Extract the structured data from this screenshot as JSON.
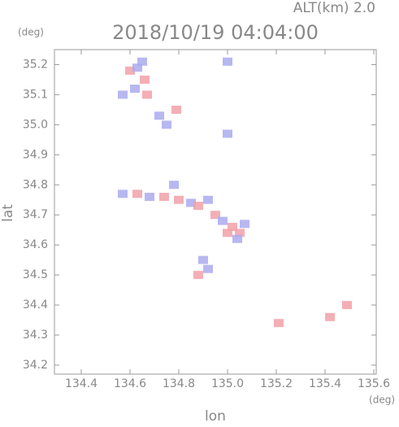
{
  "chart_data": {
    "type": "scatter",
    "header": "ALT(km) 2.0",
    "title": "2018/10/19 04:04:00",
    "y_unit": "(deg)",
    "x_unit": "(deg)",
    "ylabel": "lat",
    "xlabel": "lon",
    "xlim": [
      134.29,
      135.61
    ],
    "ylim": [
      34.17,
      35.25
    ],
    "xticks": [
      134.4,
      134.6,
      134.8,
      {
        "value": 135,
        "label": "135.0"
      },
      135.2,
      135.4,
      135.6
    ],
    "yticks": [
      34.2,
      34.3,
      34.4,
      34.5,
      34.6,
      34.7,
      34.8,
      34.9,
      {
        "value": 35,
        "label": "35.0"
      },
      35.1,
      35.2
    ],
    "x": [
      134.6,
      134.63,
      134.66,
      134.62,
      134.57,
      134.67,
      134.65,
      134.72,
      134.75,
      134.79,
      135.0,
      135.0,
      134.57,
      134.63,
      134.68,
      134.74,
      134.78,
      134.8,
      134.85,
      134.88,
      134.92,
      134.95,
      134.98,
      135.02,
      135.05,
      135.07,
      135.04,
      135.0,
      134.9,
      134.88,
      134.92,
      135.21,
      135.42,
      135.49
    ],
    "values": [
      35.18,
      35.19,
      35.15,
      35.12,
      35.1,
      35.1,
      35.21,
      35.03,
      35.0,
      35.05,
      34.97,
      35.21,
      34.77,
      34.77,
      34.76,
      34.76,
      34.8,
      34.75,
      34.74,
      34.73,
      34.75,
      34.7,
      34.68,
      34.66,
      34.64,
      34.67,
      34.62,
      34.64,
      34.55,
      34.5,
      34.52,
      34.34,
      34.36,
      34.4
    ],
    "colors": [
      "#f2a0a8",
      "#aaaaf0",
      "#f2a0a8",
      "#aaaaf0",
      "#aaaaf0",
      "#f2a0a8",
      "#aaaaf0",
      "#aaaaf0",
      "#aaaaf0",
      "#f2a0a8",
      "#aaaaf0",
      "#aaaaf0",
      "#aaaaf0",
      "#f2a0a8",
      "#aaaaf0",
      "#f2a0a8",
      "#aaaaf0",
      "#f2a0a8",
      "#aaaaf0",
      "#f2a0a8",
      "#aaaaf0",
      "#f2a0a8",
      "#aaaaf0",
      "#f2a0a8",
      "#f2a0a8",
      "#aaaaf0",
      "#aaaaf0",
      "#f2a0a8",
      "#aaaaf0",
      "#f2a0a8",
      "#aaaaf0",
      "#f2a0a8",
      "#f2a0a8",
      "#f2a0a8"
    ]
  }
}
